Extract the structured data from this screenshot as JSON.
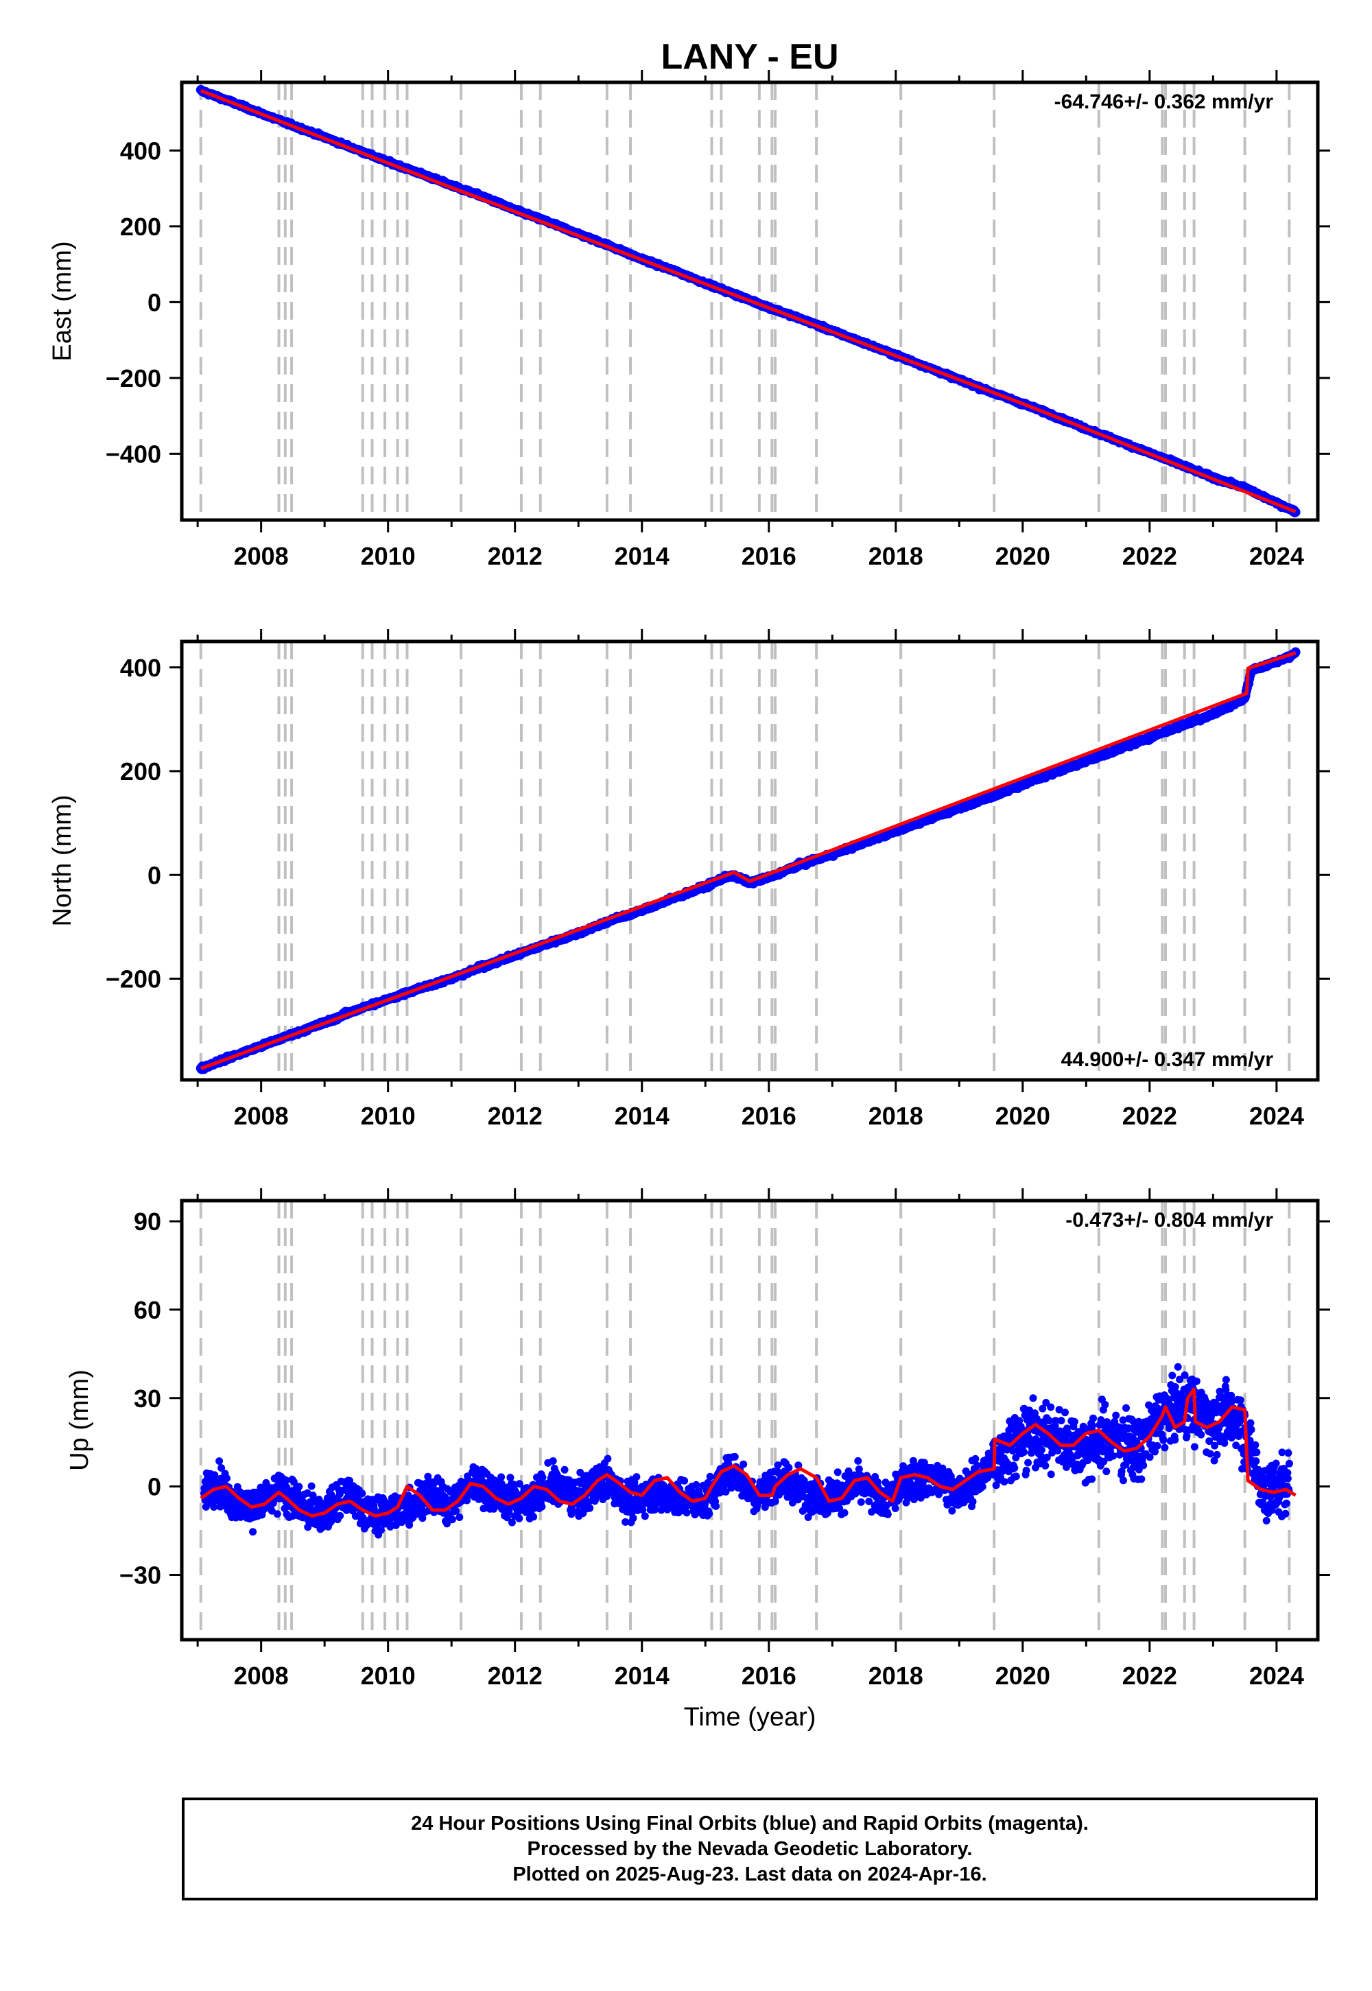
{
  "title": "LANY - EU",
  "x_axis_label": "Time (year)",
  "x_ticks": [
    "2008",
    "2010",
    "2012",
    "2014",
    "2016",
    "2018",
    "2020",
    "2022",
    "2024"
  ],
  "colors": {
    "data": "#0000ff",
    "model": "#ff0000",
    "event_lines": "#c0c0c0",
    "frame": "#000000"
  },
  "footer": {
    "line1": "24 Hour Positions Using Final Orbits (blue) and Rapid Orbits (magenta).",
    "line2": "Processed by the Nevada Geodetic Laboratory.",
    "line3": "Plotted on 2025-Aug-23. Last data on 2024-Apr-16."
  },
  "chart_data": [
    {
      "type": "scatter",
      "title": "LANY - EU",
      "ylabel": "East (mm)",
      "xlabel": "",
      "xlim": [
        2006.75,
        2024.65
      ],
      "ylim": [
        -575,
        580
      ],
      "yticks": [
        -400,
        -200,
        0,
        200,
        400
      ],
      "rate_text": "-64.746+/- 0.362 mm/yr",
      "rate_position": "top-right",
      "event_lines": [
        2007.05,
        2008.28,
        2008.38,
        2008.48,
        2009.6,
        2009.75,
        2009.95,
        2010.15,
        2010.3,
        2011.15,
        2012.1,
        2012.4,
        2013.45,
        2013.82,
        2015.1,
        2015.25,
        2015.85,
        2016.05,
        2016.1,
        2016.75,
        2018.08,
        2019.55,
        2021.2,
        2022.2,
        2022.25,
        2022.55,
        2022.7,
        2023.5,
        2024.2
      ],
      "series": [
        {
          "role": "data",
          "x": [
            2007.05,
            2007.5,
            2008.0,
            2008.5,
            2009.0,
            2009.5,
            2010.0,
            2010.5,
            2011.0,
            2011.5,
            2012.0,
            2012.5,
            2013.0,
            2013.5,
            2014.0,
            2014.5,
            2015.0,
            2015.5,
            2016.0,
            2016.5,
            2017.0,
            2017.5,
            2018.0,
            2018.5,
            2019.0,
            2019.5,
            2020.0,
            2020.5,
            2021.0,
            2021.5,
            2022.0,
            2022.5,
            2023.0,
            2023.5,
            2024.0,
            2024.3
          ],
          "y": [
            558,
            530,
            498,
            466,
            435,
            403,
            370,
            340,
            308,
            278,
            243,
            213,
            180,
            148,
            113,
            83,
            50,
            18,
            -14,
            -44,
            -76,
            -108,
            -140,
            -172,
            -205,
            -237,
            -268,
            -300,
            -334,
            -366,
            -398,
            -430,
            -463,
            -490,
            -530,
            -553
          ]
        },
        {
          "role": "model",
          "x": [
            2007.05,
            2010.8,
            2015.0,
            2020.0,
            2024.3
          ],
          "y": [
            558,
            315,
            48,
            -268,
            -553
          ]
        }
      ]
    },
    {
      "type": "scatter",
      "title": "",
      "ylabel": "North (mm)",
      "xlabel": "",
      "xlim": [
        2006.75,
        2024.65
      ],
      "ylim": [
        -395,
        450
      ],
      "yticks": [
        -200,
        0,
        200,
        400
      ],
      "rate_text": "44.900+/- 0.347 mm/yr",
      "rate_position": "bottom-right",
      "event_lines": [
        2007.05,
        2008.28,
        2008.38,
        2008.48,
        2009.6,
        2009.75,
        2009.95,
        2010.15,
        2010.3,
        2011.15,
        2012.1,
        2012.4,
        2013.45,
        2013.82,
        2015.1,
        2015.25,
        2015.85,
        2016.05,
        2016.1,
        2016.75,
        2018.08,
        2019.55,
        2021.2,
        2022.2,
        2022.25,
        2022.55,
        2022.7,
        2023.5,
        2024.2
      ],
      "series": [
        {
          "role": "data",
          "x": [
            2007.05,
            2007.5,
            2008.0,
            2008.5,
            2009.0,
            2009.5,
            2010.0,
            2010.5,
            2011.0,
            2011.5,
            2012.0,
            2012.5,
            2013.0,
            2013.5,
            2014.0,
            2014.5,
            2015.0,
            2015.4,
            2015.7,
            2016.0,
            2016.5,
            2017.0,
            2017.5,
            2018.0,
            2018.5,
            2019.0,
            2019.5,
            2020.0,
            2020.5,
            2021.0,
            2021.5,
            2022.0,
            2022.5,
            2023.0,
            2023.5,
            2023.6,
            2024.0,
            2024.3
          ],
          "y": [
            -373,
            -352,
            -330,
            -307,
            -285,
            -260,
            -240,
            -218,
            -200,
            -176,
            -155,
            -133,
            -112,
            -88,
            -68,
            -45,
            -22,
            0,
            -15,
            -5,
            20,
            40,
            62,
            85,
            107,
            130,
            150,
            175,
            197,
            220,
            242,
            265,
            288,
            310,
            340,
            395,
            410,
            428
          ]
        },
        {
          "role": "model",
          "x": [
            2007.05,
            2010.8,
            2015.45,
            2015.7,
            2023.53,
            2023.55,
            2024.3
          ],
          "y": [
            -373,
            -205,
            5,
            -12,
            350,
            398,
            428
          ]
        }
      ]
    },
    {
      "type": "scatter",
      "title": "",
      "ylabel": "Up (mm)",
      "xlabel": "Time (year)",
      "xlim": [
        2006.75,
        2024.65
      ],
      "ylim": [
        -52,
        97
      ],
      "yticks": [
        -30,
        0,
        30,
        60,
        90
      ],
      "rate_text": "-0.473+/- 0.804 mm/yr",
      "rate_position": "top-right",
      "event_lines": [
        2007.05,
        2008.28,
        2008.38,
        2008.48,
        2009.6,
        2009.75,
        2009.95,
        2010.15,
        2010.3,
        2011.15,
        2012.1,
        2012.4,
        2013.45,
        2013.82,
        2015.1,
        2015.25,
        2015.85,
        2016.05,
        2016.1,
        2016.75,
        2018.08,
        2019.55,
        2021.2,
        2022.2,
        2022.25,
        2022.55,
        2022.7,
        2023.5,
        2024.2
      ],
      "series": [
        {
          "role": "data",
          "note_scatter": "daily positions",
          "x": [
            2007.1,
            2007.3,
            2007.6,
            2008.0,
            2008.3,
            2008.7,
            2009.0,
            2009.4,
            2009.8,
            2010.2,
            2010.6,
            2011.0,
            2011.4,
            2011.8,
            2012.2,
            2012.6,
            2013.0,
            2013.4,
            2013.8,
            2014.2,
            2014.6,
            2015.0,
            2015.4,
            2015.8,
            2016.2,
            2016.6,
            2017.0,
            2017.4,
            2017.8,
            2018.2,
            2018.6,
            2019.0,
            2019.4,
            2019.8,
            2020.2,
            2020.6,
            2021.0,
            2021.4,
            2021.8,
            2022.2,
            2022.6,
            2023.0,
            2023.4,
            2023.8,
            2024.2
          ],
          "y": [
            -3,
            2,
            -6,
            -7,
            -1,
            -8,
            -9,
            -3,
            -10,
            -8,
            -3,
            -6,
            2,
            -4,
            -5,
            1,
            -4,
            3,
            -5,
            -2,
            -4,
            -5,
            6,
            -3,
            2,
            -2,
            -4,
            1,
            -5,
            2,
            4,
            -3,
            5,
            14,
            18,
            16,
            13,
            17,
            12,
            24,
            28,
            22,
            24,
            -2,
            1
          ]
        },
        {
          "role": "model",
          "x": [
            2007.05,
            2007.25,
            2007.45,
            2007.65,
            2007.85,
            2008.05,
            2008.28,
            2008.4,
            2008.6,
            2008.8,
            2009.0,
            2009.2,
            2009.4,
            2009.6,
            2009.8,
            2010.0,
            2010.15,
            2010.3,
            2010.5,
            2010.7,
            2010.9,
            2011.1,
            2011.3,
            2011.5,
            2011.7,
            2011.9,
            2012.1,
            2012.3,
            2012.5,
            2012.7,
            2012.9,
            2013.1,
            2013.3,
            2013.45,
            2013.65,
            2013.82,
            2014.0,
            2014.2,
            2014.4,
            2014.6,
            2014.8,
            2015.0,
            2015.1,
            2015.25,
            2015.45,
            2015.65,
            2015.85,
            2016.05,
            2016.1,
            2016.3,
            2016.5,
            2016.75,
            2016.95,
            2017.15,
            2017.35,
            2017.55,
            2017.75,
            2017.95,
            2018.08,
            2018.3,
            2018.5,
            2018.7,
            2018.9,
            2019.1,
            2019.3,
            2019.55,
            2019.56,
            2019.8,
            2020.0,
            2020.2,
            2020.4,
            2020.6,
            2020.8,
            2021.0,
            2021.2,
            2021.4,
            2021.6,
            2021.8,
            2022.0,
            2022.2,
            2022.25,
            2022.4,
            2022.55,
            2022.6,
            2022.7,
            2022.72,
            2022.9,
            2023.1,
            2023.3,
            2023.5,
            2023.55,
            2023.75,
            2023.95,
            2024.15,
            2024.3
          ],
          "y": [
            -4,
            -1,
            0,
            -4,
            -7,
            -6,
            -2,
            -4,
            -8,
            -10,
            -9,
            -6,
            -5,
            -8,
            -10,
            -9,
            -7,
            0,
            -3,
            -8,
            -8,
            -5,
            1,
            0,
            -4,
            -6,
            -4,
            0,
            -1,
            -5,
            -6,
            -3,
            2,
            4,
            1,
            -2,
            -3,
            2,
            3,
            -2,
            -5,
            -4,
            0,
            5,
            7,
            4,
            -3,
            -3,
            0,
            4,
            6,
            3,
            -5,
            -4,
            2,
            3,
            -2,
            -5,
            3,
            4,
            3,
            0,
            -1,
            2,
            5,
            6,
            16,
            14,
            18,
            21,
            18,
            14,
            14,
            18,
            19,
            15,
            12,
            13,
            17,
            24,
            27,
            20,
            22,
            30,
            33,
            22,
            20,
            22,
            27,
            26,
            2,
            -1,
            -2,
            -1,
            -3
          ]
        }
      ]
    }
  ]
}
